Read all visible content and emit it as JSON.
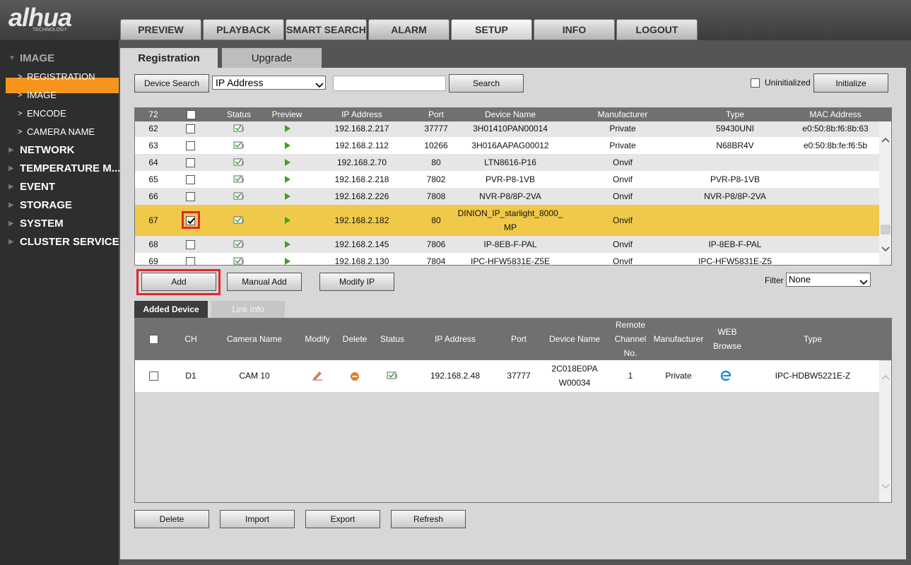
{
  "logo": {
    "brand": "alhua",
    "tagline": "TECHNOLOGY"
  },
  "nav": {
    "items": [
      "PREVIEW",
      "PLAYBACK",
      "SMART SEARCH",
      "ALARM",
      "SETUP",
      "INFO",
      "LOGOUT"
    ],
    "active": 4
  },
  "sidebar": {
    "items": [
      {
        "label": "IMAGE",
        "level": 0,
        "expanded": true
      },
      {
        "label": "REGISTRATION",
        "level": 1,
        "active": true
      },
      {
        "label": "IMAGE",
        "level": 1
      },
      {
        "label": "ENCODE",
        "level": 1
      },
      {
        "label": "CAMERA NAME",
        "level": 1
      },
      {
        "label": "NETWORK",
        "level": 0
      },
      {
        "label": "TEMPERATURE M...",
        "level": 0
      },
      {
        "label": "EVENT",
        "level": 0
      },
      {
        "label": "STORAGE",
        "level": 0
      },
      {
        "label": "SYSTEM",
        "level": 0
      },
      {
        "label": "CLUSTER SERVICE",
        "level": 0
      }
    ]
  },
  "tabs": {
    "items": [
      "Registration",
      "Upgrade"
    ],
    "active": 0
  },
  "toolbar": {
    "device_search": "Device Search",
    "search_by": "IP Address",
    "search": "Search",
    "uninitialized": "Uninitialized",
    "initialize": "Initialize"
  },
  "search_table": {
    "count": 72,
    "columns": {
      "status": "Status",
      "preview": "Preview",
      "ip": "IP Address",
      "port": "Port",
      "name": "Device Name",
      "manufacturer": "Manufacturer",
      "type": "Type",
      "mac": "MAC Address"
    },
    "rows": [
      {
        "no": 62,
        "checked": false,
        "ip": "192.168.2.217",
        "port": 37777,
        "name": "3H01410PAN00014",
        "manufacturer": "Private",
        "type": "59430UNI",
        "mac": "e0:50:8b:f6:8b:63"
      },
      {
        "no": 63,
        "checked": false,
        "ip": "192.168.2.112",
        "port": 10266,
        "name": "3H016AAPAG00012",
        "manufacturer": "Private",
        "type": "N68BR4V",
        "mac": "e0:50:8b:fe:f6:5b"
      },
      {
        "no": 64,
        "checked": false,
        "ip": "192.168.2.70",
        "port": 80,
        "name": "LTN8616-P16",
        "manufacturer": "Onvif",
        "type": null,
        "mac": null
      },
      {
        "no": 65,
        "checked": false,
        "ip": "192.168.2.218",
        "port": 7802,
        "name": "PVR-P8-1VB",
        "manufacturer": "Onvif",
        "type": "PVR-P8-1VB",
        "mac": null
      },
      {
        "no": 66,
        "checked": false,
        "ip": "192.168.2.226",
        "port": 7808,
        "name": "NVR-P8/8P-2VA",
        "manufacturer": "Onvif",
        "type": "NVR-P8/8P-2VA",
        "mac": null
      },
      {
        "no": 67,
        "checked": true,
        "selected": true,
        "ip": "192.168.2.182",
        "port": 80,
        "name": "DINION_IP_starlight_8000_MP",
        "manufacturer": "Onvif",
        "type": null,
        "mac": null
      },
      {
        "no": 68,
        "checked": false,
        "ip": "192.168.2.145",
        "port": 7806,
        "name": "IP-8EB-F-PAL",
        "manufacturer": "Onvif",
        "type": "IP-8EB-F-PAL",
        "mac": null
      },
      {
        "no": 69,
        "checked": false,
        "ip": "192.168.2.130",
        "port": 7804,
        "name": "IPC-HFW5831E-Z5E",
        "manufacturer": "Onvif",
        "type": "IPC-HFW5831E-Z5",
        "mac": null
      }
    ]
  },
  "actions": {
    "add": "Add",
    "manual_add": "Manual Add",
    "modify_ip": "Modify IP",
    "filter_label": "Filter",
    "filter_value": "None"
  },
  "subtabs": {
    "items": [
      "Added Device",
      "Link Info"
    ],
    "active": 0
  },
  "added_table": {
    "columns": {
      "ch": "CH",
      "camera": "Camera Name",
      "modify": "Modify",
      "delete": "Delete",
      "status": "Status",
      "ip": "IP Address",
      "port": "Port",
      "name": "Device Name",
      "remote": "Remote Channel No.",
      "manufacturer": "Manufacturer",
      "web": "WEB Browse",
      "type": "Type"
    },
    "rows": [
      {
        "ch": "D1",
        "camera": "CAM 10",
        "ip": "192.168.2.48",
        "port": 37777,
        "name": "2C018E0PAW00034",
        "remote": 1,
        "manufacturer": "Private",
        "type": "IPC-HDBW5221E-Z"
      }
    ]
  },
  "bottom": {
    "delete": "Delete",
    "import": "Import",
    "export": "Export",
    "refresh": "Refresh"
  }
}
